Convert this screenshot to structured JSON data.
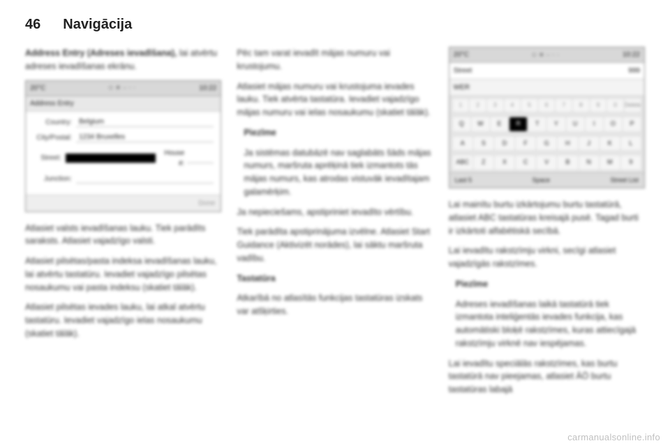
{
  "header": {
    "page_number": "46",
    "section_title": "Navigācija"
  },
  "col1": {
    "intro_bold": "Address Entry (Adreses ievadīšana),",
    "intro_rest": "lai atvērtu adreses ievadīšanas ekrānu.",
    "p1": "Atlasiet valsts ievadīšanas lauku. Tiek parādīts saraksts. Atlasiet vajadzīgo valsti.",
    "p2": "Atlasiet pilsētas/pasta indeksa ievadīšanas lauku, lai atvērtu tastatūru. Ievadiet vajadzīgo pilsētas nosaukumu vai pasta indeksu (skatiet tālāk).",
    "p3": "Atlasiet pilsētas ievades lauku, lai atkal atvērtu tastatūru. Ievadiet vajadzīgo ielas nosaukumu (skatiet tālāk)."
  },
  "col2": {
    "p1": "Pēc tam varat ievadīt mājas numuru vai krustojumu.",
    "p2": "Atlasiet mājas numuru vai krustojuma ievades lauku. Tiek atvērta tastatūra. Ievadiet vajadzīgo mājas numuru vai ielas nosaukumu (skatiet tālāk).",
    "note_title": "Piezīme",
    "note_body": "Ja sistēmas datubāzē nav saglabāts šāds mājas numurs, maršruta aprēķinā tiek izmantots tās mājas numurs, kas atrodas vistuvāk ievadītajam galamērķim.",
    "p3": "Ja nepieciešams, apstipriniet ievadīto vērtību.",
    "p4": "Tiek parādīta apstiprinājuma izvēlne. Atlasiet Start Guidance (Aktivizēt norādes), lai sāktu maršruta vadību.",
    "kb_title": "Tastatūra",
    "kb_body": "Atkarībā no atlasītās funkcijas tastatūras izskats var atšķirties."
  },
  "col3": {
    "p1": "Lai mainītu burtu izkārtojumu burtu tastatūrā, atlasiet ABC tastatūras kreisajā pusē. Tagad burti ir izkārtoti alfabētiskā secībā.",
    "p2": "Lai ievadītu rakstzīmju virkni, secīgi atlasiet vajadzīgās rakstzīmes.",
    "note_title": "Piezīme",
    "note_body": "Adreses ievadīšanas laikā tastatūrā tiek izmantota inteliģentās ievades funkcija, kas automātiski bloķē rakstzīmes, kuras attiecīgajā rakstzīmju virknē nav iespējamas.",
    "p3": "Lai ievadītu speciālās rakstzīmes, kas burtu tastatūrā nav pieejamas, atlasiet ÄÖ burtu tastatūras labajā"
  },
  "screenshot1": {
    "temp": "20°C",
    "time": "10:22",
    "title": "Address Entry",
    "country_label": "Country:",
    "country_value": "Belgium",
    "city_label": "City/Postal:",
    "city_value": "1234 Bruxelles",
    "street_label": "Street:",
    "house_label": "House #:",
    "junction_label": "Junction:",
    "done": "Done"
  },
  "screenshot2": {
    "temp": "20°C",
    "time": "10:22",
    "street_label": "Street",
    "typed": "WER",
    "num": "999",
    "delete": "Delete",
    "row_nums": [
      "1",
      "2",
      "3",
      "4",
      "5",
      "6",
      "7",
      "8",
      "9",
      "0"
    ],
    "row1": [
      "Q",
      "W",
      "E",
      "R",
      "T",
      "Y",
      "U",
      "I",
      "O",
      "P"
    ],
    "row2": [
      "A",
      "S",
      "D",
      "F",
      "G",
      "H",
      "J",
      "K",
      "L"
    ],
    "row3": [
      "ABC",
      "Z",
      "X",
      "C",
      "V",
      "B",
      "N",
      "M",
      "9"
    ],
    "highlighted": "R",
    "bottom_left": "Last 5",
    "bottom_mid": "Space",
    "bottom_right": "Street List"
  },
  "watermark": "carmanualsonline.info",
  "colors": {
    "text": "#222222",
    "page_bg": "#ffffff",
    "ss_bg": "#f9f9f9",
    "ss_bar": "#d8d8d8",
    "watermark": "#c0c0c0"
  }
}
